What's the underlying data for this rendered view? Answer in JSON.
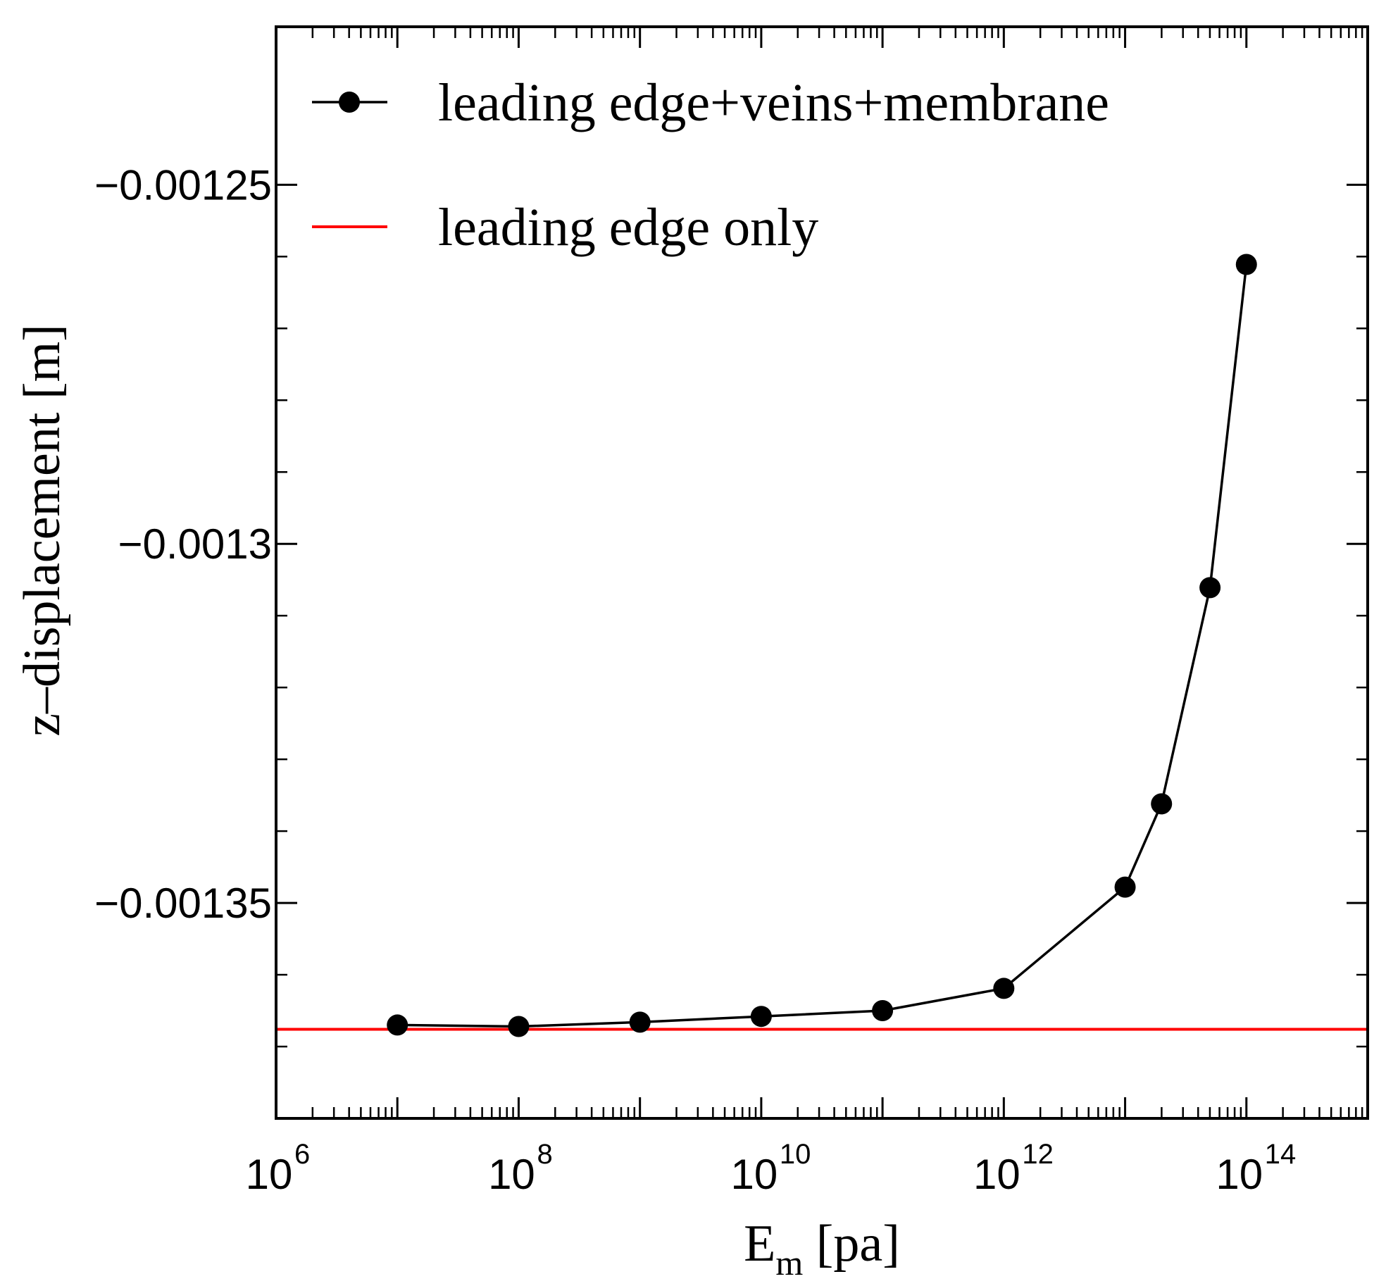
{
  "chart_data": {
    "type": "line",
    "title": "",
    "xlabel": {
      "main": "E",
      "sub": "m",
      "unit": " [pa]"
    },
    "ylabel": "z–displacement [m]",
    "xscale": "log",
    "xlim_exp": [
      6,
      15
    ],
    "ylim": [
      -0.00138,
      -0.001228
    ],
    "x_tick_labels": [
      {
        "base": "10",
        "exp": "6",
        "exp_value": 6
      },
      {
        "base": "10",
        "exp": "8",
        "exp_value": 8
      },
      {
        "base": "10",
        "exp": "10",
        "exp_value": 10
      },
      {
        "base": "10",
        "exp": "12",
        "exp_value": 12
      },
      {
        "base": "10",
        "exp": "14",
        "exp_value": 14
      }
    ],
    "y_tick_labels": [
      {
        "text": "−0.00125",
        "value": -0.00125
      },
      {
        "text": "−0.0013",
        "value": -0.0013
      },
      {
        "text": "−0.00135",
        "value": -0.00135
      }
    ],
    "y_minor_ticks": [
      -0.00126,
      -0.00127,
      -0.00128,
      -0.00129,
      -0.00131,
      -0.00132,
      -0.00133,
      -0.00134,
      -0.00136,
      -0.00137
    ],
    "grid": false,
    "legend_position": "top-left",
    "series": [
      {
        "name": "leading edge+veins+membrane",
        "style": "line-markers",
        "color": "#000000",
        "x_exp": [
          7,
          8,
          9,
          10,
          11,
          12,
          13,
          13.3,
          13.7,
          14
        ],
        "values": [
          -0.001367,
          -0.0013672,
          -0.0013666,
          -0.0013658,
          -0.001365,
          -0.0013619,
          -0.0013478,
          -0.0013362,
          -0.0013061,
          -0.0012611
        ]
      },
      {
        "name": "leading edge only",
        "style": "line",
        "color": "#ff0000",
        "values": [
          -0.0013676
        ]
      }
    ]
  }
}
